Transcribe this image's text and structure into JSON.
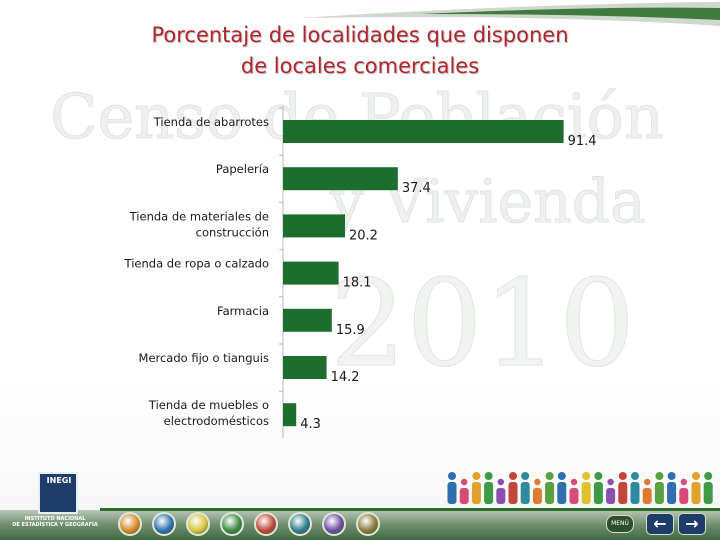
{
  "chart_data": {
    "type": "bar",
    "orientation": "horizontal",
    "title": "Porcentaje de localidades que disponen de locales comerciales",
    "title_lines": [
      "Porcentaje de localidades que disponen",
      "de locales comerciales"
    ],
    "categories": [
      "Tienda de abarrotes",
      "Papelería",
      "Tienda de materiales de construcción",
      "Tienda de ropa o calzado",
      "Farmacia",
      "Mercado fijo o tianguis",
      "Tienda de muebles o electrodomésticos"
    ],
    "category_lines": [
      [
        "Tienda de abarrotes"
      ],
      [
        "Papelería"
      ],
      [
        "Tienda de materiales de",
        "construcción"
      ],
      [
        "Tienda de ropa o calzado"
      ],
      [
        "Farmacia"
      ],
      [
        "Mercado fijo o tianguis"
      ],
      [
        "Tienda de muebles o",
        "electrodomésticos"
      ]
    ],
    "values": [
      91.4,
      37.4,
      20.2,
      18.1,
      15.9,
      14.2,
      4.3
    ],
    "data_labels": [
      "91.4",
      "37.4",
      "20.2",
      "18.1",
      "15.9",
      "14.2",
      "4.3"
    ],
    "xlim": [
      0,
      100
    ],
    "grid": false,
    "bar_color": "#1d6e2c",
    "legend": "none"
  },
  "watermark": {
    "line1": "Censo de Población",
    "line2": "y Vivienda",
    "year": "2010"
  },
  "footer": {
    "logo_mark": "INEGI",
    "logo_text_lines": [
      "INSTITUTO NACIONAL",
      "DE ESTADÍSTICA Y GEOGRAFÍA"
    ],
    "menu_label": "MENÚ",
    "back_symbol": "←",
    "forward_symbol": "→",
    "nav_icon_colors": [
      "#d58a2a",
      "#2f6fb0",
      "#d7c53b",
      "#3f8a45",
      "#c2463a",
      "#2f7d8a",
      "#6b4fa0",
      "#8a7a3a"
    ],
    "people_colors": [
      "#2f6fb0",
      "#d94a7a",
      "#e0a12e",
      "#3f9a45",
      "#8a4fb0",
      "#c2463a",
      "#2f8aa0",
      "#e07a2e",
      "#5aa03f",
      "#2f6fb0",
      "#d94a7a",
      "#e0c12e",
      "#3f9a45",
      "#8a4fb0",
      "#c2463a",
      "#2f8aa0",
      "#e07a2e",
      "#5aa03f",
      "#2f6fb0",
      "#d94a7a",
      "#e0a12e",
      "#3f9a45"
    ]
  }
}
